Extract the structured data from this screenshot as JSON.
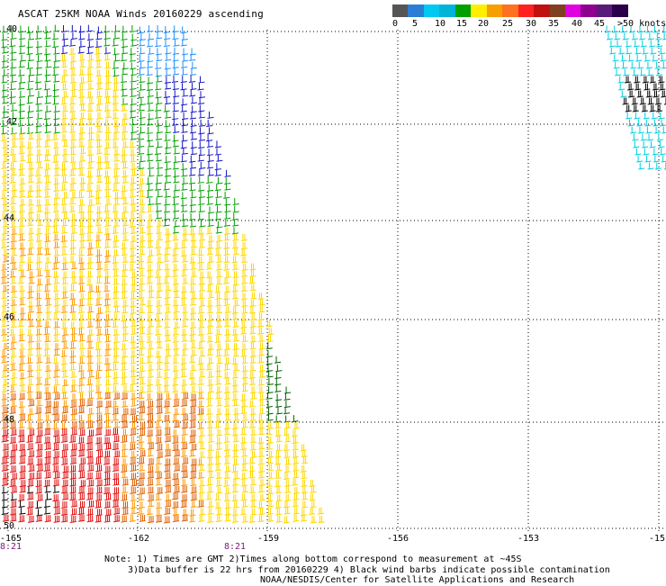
{
  "title": "ASCAT 25KM NOAA Winds 20160229 ascending",
  "speed_scale": {
    "labels": [
      "0",
      "5",
      "10",
      "15",
      "20",
      "25",
      "30",
      "35",
      "40",
      "45",
      ">50 knots"
    ],
    "colors": [
      "#555555",
      "#2a7fd4",
      "#00c8f0",
      "#00b4d8",
      "#00a000",
      "#ffff00",
      "#f5a000",
      "#ff3030",
      "#c01010",
      "#804020",
      "#e000e0",
      "#900090",
      "#3a006a"
    ]
  },
  "lat_labels": [
    "40",
    "42",
    "44",
    "46",
    "48",
    "50"
  ],
  "lon_labels": [
    "-165",
    "-162",
    "-159",
    "-156",
    "-153",
    "-15"
  ],
  "time_labels": [
    "8:21",
    "8:21"
  ],
  "notes": {
    "line1": "Note: 1) Times are GMT 2)Times along bottom correspond to measurement at ~45S",
    "line2": "3)Data buffer is 22 hrs from 20160229 4) Black wind barbs indicate possible contamination",
    "line3": "NOAA/NESDIS/Center for Satellite Applications and Research"
  },
  "barb_colors": {
    "calm": "#000000",
    "light": "#1e90ff",
    "cyan": "#00d0e0",
    "blue": "#1414c8",
    "green": "#00a000",
    "darkgreen": "#006000",
    "yellow": "#ffd700",
    "orange": "#ff9a00",
    "darkorange": "#e06000",
    "red": "#e01010",
    "black": "#000000"
  }
}
